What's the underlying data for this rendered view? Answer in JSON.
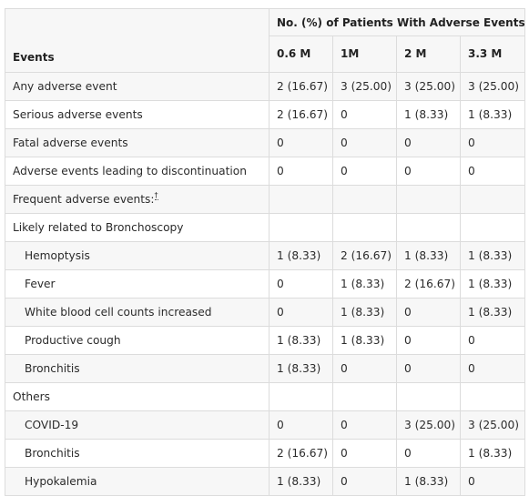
{
  "table": {
    "header": {
      "events_label": "Events",
      "group_label": "No. (%) of Patients With Adverse Events",
      "doses": [
        "0.6 M",
        "1M",
        "2 M",
        "3.3 M"
      ]
    },
    "rows": [
      {
        "label": "Any adverse event",
        "indent": false,
        "values": [
          "2 (16.67)",
          "3 (25.00)",
          "3 (25.00)",
          "3 (25.00)"
        ]
      },
      {
        "label": "Serious adverse events",
        "indent": false,
        "values": [
          "2 (16.67)",
          "0",
          "1 (8.33)",
          "1 (8.33)"
        ]
      },
      {
        "label": "Fatal adverse events",
        "indent": false,
        "values": [
          "0",
          "0",
          "0",
          "0"
        ]
      },
      {
        "label": "Adverse events leading to discontinuation",
        "indent": false,
        "values": [
          "0",
          "0",
          "0",
          "0"
        ]
      },
      {
        "label": "Frequent adverse events:",
        "footnote": "†",
        "indent": false,
        "values": [
          "",
          "",
          "",
          ""
        ]
      },
      {
        "label": "Likely related to Bronchoscopy",
        "indent": false,
        "values": [
          "",
          "",
          "",
          ""
        ]
      },
      {
        "label": "Hemoptysis",
        "indent": true,
        "values": [
          "1 (8.33)",
          "2 (16.67)",
          "1 (8.33)",
          "1 (8.33)"
        ]
      },
      {
        "label": "Fever",
        "indent": true,
        "values": [
          "0",
          "1 (8.33)",
          "2 (16.67)",
          "1 (8.33)"
        ]
      },
      {
        "label": "White blood cell counts increased",
        "indent": true,
        "values": [
          "0",
          "1 (8.33)",
          "0",
          "1 (8.33)"
        ]
      },
      {
        "label": "Productive cough",
        "indent": true,
        "values": [
          "1 (8.33)",
          "1 (8.33)",
          "0",
          "0"
        ]
      },
      {
        "label": "Bronchitis",
        "indent": true,
        "values": [
          "1 (8.33)",
          "0",
          "0",
          "0"
        ]
      },
      {
        "label": "Others",
        "indent": false,
        "values": [
          "",
          "",
          "",
          ""
        ]
      },
      {
        "label": "COVID-19",
        "indent": true,
        "values": [
          "0",
          "0",
          "3 (25.00)",
          "3 (25.00)"
        ]
      },
      {
        "label": "Bronchitis",
        "indent": true,
        "values": [
          "2 (16.67)",
          "0",
          "0",
          "1 (8.33)"
        ]
      },
      {
        "label": "Hypokalemia",
        "indent": true,
        "values": [
          "1 (8.33)",
          "0",
          "1 (8.33)",
          "0"
        ]
      }
    ]
  }
}
